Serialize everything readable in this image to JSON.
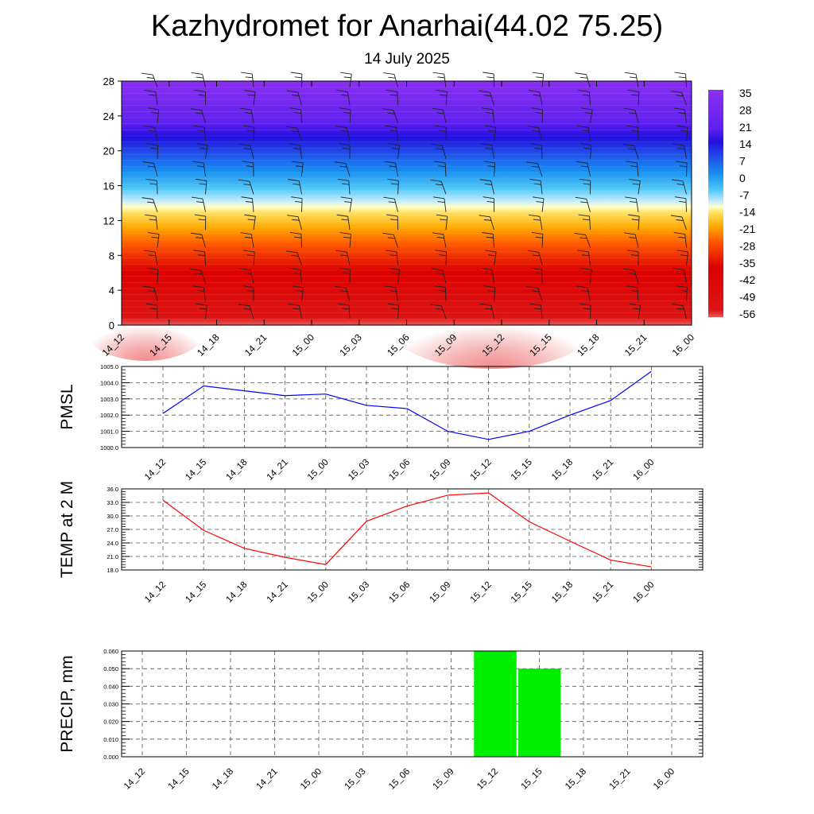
{
  "title": "Kazhydromet for Anarhai(44.02 75.25)",
  "subtitle": "14 July 2025",
  "time_labels": [
    "14_12",
    "14_15",
    "14_18",
    "14_21",
    "15_00",
    "15_03",
    "15_06",
    "15_09",
    "15_12",
    "15_15",
    "15_18",
    "15_21",
    "16_00"
  ],
  "chart_data": [
    {
      "type": "heatmap",
      "title": "",
      "xlabel": "",
      "ylabel": "",
      "x": [
        "14_12",
        "14_15",
        "14_18",
        "14_21",
        "15_00",
        "15_03",
        "15_06",
        "15_09",
        "15_12",
        "15_15",
        "15_18",
        "15_21",
        "16_00"
      ],
      "ylim": [
        0,
        28
      ],
      "y_ticks": [
        0,
        4,
        8,
        12,
        16,
        20,
        24,
        28
      ],
      "colorbar_labels": [
        "35",
        "28",
        "21",
        "14",
        "7",
        "0",
        "-7",
        "-14",
        "-21",
        "-28",
        "-35",
        "-42",
        "-49",
        "-56"
      ],
      "overlay": "wind barbs"
    },
    {
      "type": "line",
      "ylabel": "PMSL",
      "categories": [
        "14_12",
        "14_15",
        "14_18",
        "14_21",
        "15_00",
        "15_03",
        "15_06",
        "15_09",
        "15_12",
        "15_15",
        "15_18",
        "15_21",
        "16_00"
      ],
      "values": [
        1002.1,
        1003.8,
        1003.5,
        1003.2,
        1003.3,
        1002.6,
        1002.4,
        1001.0,
        1000.5,
        1001.0,
        1002.0,
        1002.9,
        1004.7
      ],
      "ylim": [
        1000.0,
        1005.0
      ],
      "y_ticks": [
        "1000.0",
        "1001.0",
        "1002.0",
        "1003.0",
        "1004.0",
        "1005.0"
      ],
      "color": "#0000ff",
      "grid": true
    },
    {
      "type": "line",
      "ylabel": "TEMP at 2 M",
      "categories": [
        "14_12",
        "14_15",
        "14_18",
        "14_21",
        "15_00",
        "15_03",
        "15_06",
        "15_09",
        "15_12",
        "15_15",
        "15_18",
        "15_21",
        "16_00"
      ],
      "values": [
        33.5,
        26.8,
        22.8,
        20.8,
        19.2,
        28.8,
        32.2,
        34.6,
        35.1,
        28.7,
        24.4,
        20.2,
        18.7
      ],
      "ylim": [
        18.0,
        36.0
      ],
      "y_ticks": [
        "18.0",
        "21.0",
        "24.0",
        "27.0",
        "30.0",
        "33.0",
        "36.0"
      ],
      "color": "#ff0000",
      "grid": true
    },
    {
      "type": "bar",
      "ylabel": "PRECIP, mm",
      "categories": [
        "14_12",
        "14_15",
        "14_18",
        "14_21",
        "15_00",
        "15_03",
        "15_06",
        "15_09",
        "15_12",
        "15_15",
        "15_18",
        "15_21",
        "16_00"
      ],
      "values": [
        0,
        0,
        0,
        0,
        0,
        0,
        0,
        0,
        0.06,
        0.05,
        0,
        0,
        0
      ],
      "ylim": [
        0.0,
        0.06
      ],
      "y_ticks": [
        "0.000",
        "0.010",
        "0.020",
        "0.030",
        "0.040",
        "0.050",
        "0.060"
      ],
      "color": "#00ee00",
      "grid": true
    }
  ]
}
